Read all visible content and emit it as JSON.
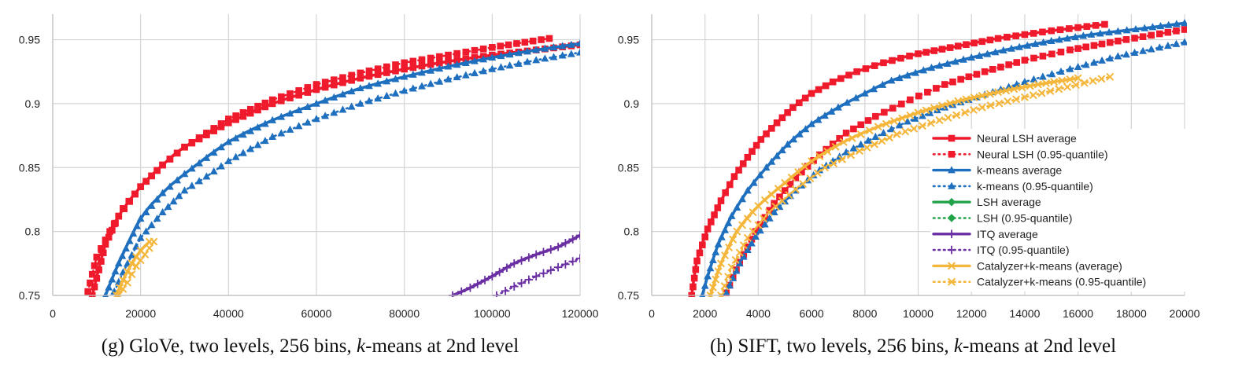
{
  "colors": {
    "neural": "#ef1b2d",
    "kmeans": "#1f6fbf",
    "lsh": "#22a34a",
    "itq": "#6a2fa3",
    "catalyzer": "#f4b63b"
  },
  "legend": [
    {
      "label": "Neural LSH average",
      "color": "neural",
      "dash": false,
      "marker": "square"
    },
    {
      "label": "Neural LSH (0.95-quantile)",
      "color": "neural",
      "dash": true,
      "marker": "square"
    },
    {
      "label": "k-means average",
      "color": "kmeans",
      "dash": false,
      "marker": "triangle"
    },
    {
      "label": "k-means (0.95-quantile)",
      "color": "kmeans",
      "dash": true,
      "marker": "triangle"
    },
    {
      "label": "LSH average",
      "color": "lsh",
      "dash": false,
      "marker": "diamond"
    },
    {
      "label": "LSH (0.95-quantile)",
      "color": "lsh",
      "dash": true,
      "marker": "diamond"
    },
    {
      "label": "ITQ average",
      "color": "itq",
      "dash": false,
      "marker": "plus"
    },
    {
      "label": "ITQ (0.95-quantile)",
      "color": "itq",
      "dash": true,
      "marker": "plus"
    },
    {
      "label": "Catalyzer+k-means (average)",
      "color": "catalyzer",
      "dash": false,
      "marker": "x"
    },
    {
      "label": "Catalyzer+k-means (0.95-quantile)",
      "color": "catalyzer",
      "dash": true,
      "marker": "x"
    }
  ],
  "chart_data": [
    {
      "type": "line",
      "caption": {
        "prefix": "(g) GloVe, two levels, 256 bins, ",
        "italic": "k",
        "suffix": "-means at 2nd level"
      },
      "xlim": [
        0,
        120000
      ],
      "ylim": [
        0.75,
        0.97
      ],
      "xticks": [
        0,
        20000,
        40000,
        60000,
        80000,
        100000,
        120000
      ],
      "xtick_labels": [
        "0",
        "20000",
        "40000",
        "60000",
        "80000",
        "100000",
        "120000"
      ],
      "yticks": [
        0.75,
        0.8,
        0.85,
        0.9,
        0.95
      ],
      "ytick_labels": [
        "0.75",
        "0.8",
        "0.85",
        "0.9",
        "0.95"
      ],
      "series": [
        {
          "name": "Neural LSH average",
          "color": "neural",
          "dash": false,
          "marker": "square",
          "x": [
            9000,
            12000,
            15000,
            20000,
            25000,
            30000,
            40000,
            50000,
            60000,
            70000,
            80000,
            90000,
            100000,
            110000,
            120000
          ],
          "y": [
            0.75,
            0.79,
            0.812,
            0.835,
            0.852,
            0.866,
            0.885,
            0.9,
            0.911,
            0.92,
            0.927,
            0.933,
            0.938,
            0.942,
            0.946
          ]
        },
        {
          "name": "Neural LSH (0.95-quantile)",
          "color": "neural",
          "dash": true,
          "marker": "square",
          "x": [
            8000,
            10000,
            13000,
            16000,
            20000,
            25000,
            30000,
            35000,
            40000,
            50000,
            60000,
            70000,
            80000,
            90000,
            100000,
            113000
          ],
          "y": [
            0.753,
            0.78,
            0.8,
            0.818,
            0.835,
            0.852,
            0.866,
            0.877,
            0.888,
            0.903,
            0.915,
            0.924,
            0.932,
            0.938,
            0.944,
            0.951
          ]
        },
        {
          "name": "k-means average",
          "color": "kmeans",
          "dash": false,
          "marker": "triangle",
          "x": [
            12000,
            15000,
            20000,
            25000,
            30000,
            40000,
            50000,
            60000,
            70000,
            80000,
            90000,
            100000,
            110000,
            120000
          ],
          "y": [
            0.75,
            0.775,
            0.81,
            0.83,
            0.845,
            0.87,
            0.887,
            0.9,
            0.912,
            0.921,
            0.929,
            0.936,
            0.942,
            0.947
          ]
        },
        {
          "name": "k-means (0.95-quantile)",
          "color": "kmeans",
          "dash": true,
          "marker": "triangle",
          "x": [
            14000,
            16000,
            20000,
            25000,
            30000,
            35000,
            40000,
            50000,
            60000,
            70000,
            80000,
            90000,
            100000,
            110000,
            120000
          ],
          "y": [
            0.753,
            0.768,
            0.795,
            0.815,
            0.832,
            0.843,
            0.855,
            0.874,
            0.888,
            0.9,
            0.91,
            0.919,
            0.927,
            0.934,
            0.94
          ]
        },
        {
          "name": "ITQ average",
          "color": "itq",
          "dash": false,
          "marker": "plus",
          "x": [
            91000,
            95000,
            100000,
            105000,
            110000,
            115000,
            120000
          ],
          "y": [
            0.75,
            0.756,
            0.765,
            0.775,
            0.782,
            0.788,
            0.797
          ]
        },
        {
          "name": "ITQ (0.95-quantile)",
          "color": "itq",
          "dash": true,
          "marker": "plus",
          "x": [
            101000,
            105000,
            110000,
            115000,
            120000
          ],
          "y": [
            0.75,
            0.757,
            0.765,
            0.772,
            0.779
          ]
        },
        {
          "name": "Catalyzer+k-means (average)",
          "color": "catalyzer",
          "dash": false,
          "marker": "x",
          "x": [
            14500,
            16000,
            18000,
            20000,
            22000
          ],
          "y": [
            0.75,
            0.762,
            0.775,
            0.785,
            0.792
          ]
        },
        {
          "name": "Catalyzer+k-means (0.95-quantile)",
          "color": "catalyzer",
          "dash": true,
          "marker": "x",
          "x": [
            15000,
            17000,
            19000,
            21000,
            23000
          ],
          "y": [
            0.75,
            0.76,
            0.773,
            0.782,
            0.792
          ]
        }
      ]
    },
    {
      "type": "line",
      "caption": {
        "prefix": "(h) SIFT, two levels, 256 bins, ",
        "italic": "k",
        "suffix": "-means at 2nd level"
      },
      "xlim": [
        0,
        20000
      ],
      "ylim": [
        0.75,
        0.97
      ],
      "xticks": [
        0,
        2000,
        4000,
        6000,
        8000,
        10000,
        12000,
        14000,
        16000,
        18000,
        20000
      ],
      "xtick_labels": [
        "0",
        "2000",
        "4000",
        "6000",
        "8000",
        "10000",
        "12000",
        "14000",
        "16000",
        "18000",
        "20000"
      ],
      "yticks": [
        0.75,
        0.8,
        0.85,
        0.9,
        0.95
      ],
      "ytick_labels": [
        "0.75",
        "0.8",
        "0.85",
        "0.9",
        "0.95"
      ],
      "legend_position": "lower-right",
      "series": [
        {
          "name": "Neural LSH average",
          "color": "neural",
          "dash": false,
          "marker": "square",
          "x": [
            1500,
            1700,
            2100,
            2600,
            3100,
            3600,
            4100,
            4700,
            5300,
            6000,
            6800,
            7700,
            8700,
            10000,
            11500,
            13000,
            15000,
            17000
          ],
          "y": [
            0.75,
            0.777,
            0.802,
            0.824,
            0.843,
            0.858,
            0.872,
            0.885,
            0.897,
            0.908,
            0.917,
            0.925,
            0.932,
            0.939,
            0.945,
            0.951,
            0.957,
            0.962
          ]
        },
        {
          "name": "Neural LSH (0.95-quantile)",
          "color": "neural",
          "dash": true,
          "marker": "square",
          "x": [
            2800,
            3300,
            3900,
            4600,
            5400,
            6300,
            7300,
            8400,
            9700,
            11000,
            12500,
            14000,
            15700,
            17500,
            20000
          ],
          "y": [
            0.752,
            0.776,
            0.8,
            0.822,
            0.842,
            0.86,
            0.877,
            0.89,
            0.903,
            0.915,
            0.925,
            0.934,
            0.942,
            0.949,
            0.958
          ]
        },
        {
          "name": "k-means average",
          "color": "kmeans",
          "dash": false,
          "marker": "triangle",
          "x": [
            1900,
            2100,
            2500,
            3000,
            3600,
            4300,
            5100,
            6000,
            7000,
            8000,
            9000,
            10500,
            12000,
            13500,
            15000,
            16500,
            18500,
            20000
          ],
          "y": [
            0.75,
            0.765,
            0.79,
            0.812,
            0.832,
            0.85,
            0.868,
            0.884,
            0.897,
            0.908,
            0.918,
            0.928,
            0.936,
            0.943,
            0.949,
            0.954,
            0.959,
            0.963
          ]
        },
        {
          "name": "k-means (0.95-quantile)",
          "color": "kmeans",
          "dash": true,
          "marker": "triangle",
          "x": [
            2800,
            3300,
            3900,
            4600,
            5400,
            6300,
            7300,
            8400,
            9600,
            11000,
            12500,
            14000,
            15700,
            17500,
            20000
          ],
          "y": [
            0.752,
            0.775,
            0.796,
            0.815,
            0.832,
            0.848,
            0.862,
            0.874,
            0.886,
            0.897,
            0.907,
            0.917,
            0.927,
            0.937,
            0.948
          ]
        },
        {
          "name": "Catalyzer+k-means (average)",
          "color": "catalyzer",
          "dash": false,
          "marker": "x",
          "x": [
            2200,
            2600,
            3200,
            4000,
            5000,
            6000,
            7200,
            8500,
            10000,
            11500,
            13000,
            14500,
            16000
          ],
          "y": [
            0.75,
            0.775,
            0.8,
            0.82,
            0.838,
            0.855,
            0.87,
            0.882,
            0.893,
            0.902,
            0.909,
            0.915,
            0.92
          ]
        },
        {
          "name": "Catalyzer+k-means (0.95-quantile)",
          "color": "catalyzer",
          "dash": true,
          "marker": "x",
          "x": [
            2600,
            3000,
            3600,
            4400,
            5400,
            6500,
            7800,
            9200,
            10800,
            12400,
            14000,
            15600,
            17200
          ],
          "y": [
            0.75,
            0.772,
            0.795,
            0.815,
            0.833,
            0.85,
            0.863,
            0.876,
            0.887,
            0.897,
            0.905,
            0.913,
            0.921
          ]
        }
      ]
    }
  ]
}
